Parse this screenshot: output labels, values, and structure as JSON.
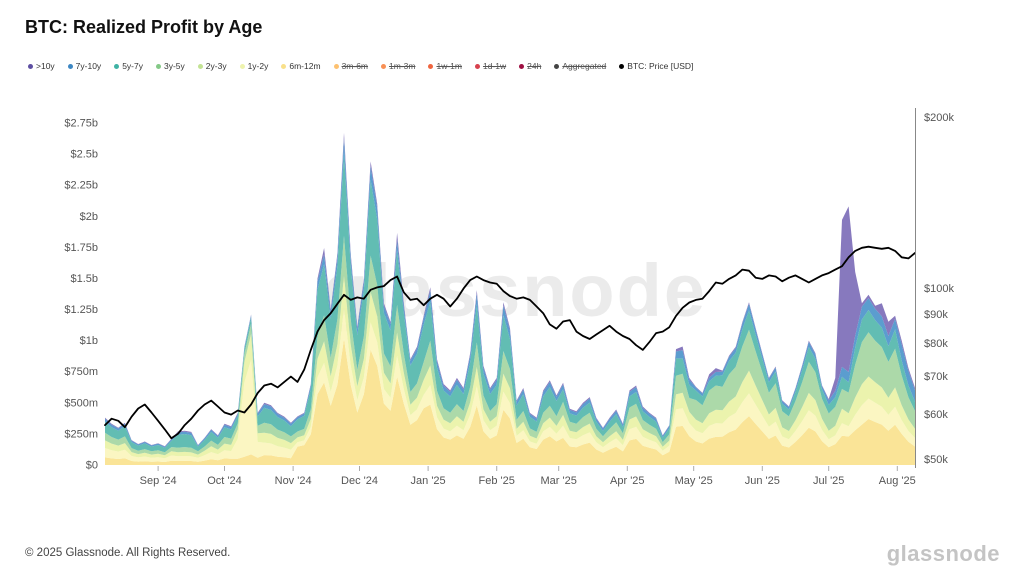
{
  "title": "BTC: Realized Profit by Age",
  "watermark": "glassnode",
  "footer": {
    "copyright": "© 2025 Glassnode. All Rights Reserved.",
    "wordmark": "glassnode"
  },
  "legend": [
    {
      "label": ">10y",
      "color": "#5e4fa2",
      "enabled": true
    },
    {
      "label": "7y-10y",
      "color": "#3d87c3",
      "enabled": true
    },
    {
      "label": "5y-7y",
      "color": "#3fb2a4",
      "enabled": true
    },
    {
      "label": "3y-5y",
      "color": "#84c987",
      "enabled": true
    },
    {
      "label": "2y-3y",
      "color": "#c3e394",
      "enabled": true
    },
    {
      "label": "1y-2y",
      "color": "#eef3ae",
      "enabled": true
    },
    {
      "label": "6m-12m",
      "color": "#f9e08a",
      "enabled": true
    },
    {
      "label": "3m-6m",
      "color": "#fdc170",
      "enabled": false
    },
    {
      "label": "1m-3m",
      "color": "#f89055",
      "enabled": false
    },
    {
      "label": "1w-1m",
      "color": "#ef653f",
      "enabled": false
    },
    {
      "label": "1d-1w",
      "color": "#d7414e",
      "enabled": false
    },
    {
      "label": "24h",
      "color": "#9e0f42",
      "enabled": false
    },
    {
      "label": "Aggregated",
      "color": "#444444",
      "enabled": false
    },
    {
      "label": "BTC: Price [USD]",
      "color": "#000000",
      "enabled": true
    }
  ],
  "chart_data": {
    "type": "area",
    "stacked": true,
    "title": "BTC: Realized Profit by Age",
    "x_start": "2024-08-08",
    "step_days": 3,
    "n": 123,
    "unit_left": "realized profit, $ millions",
    "unit_right": "BTC price, $ thousands (log scale)",
    "month_ticks": [
      {
        "label": "Sep '24",
        "day": 24
      },
      {
        "label": "Oct '24",
        "day": 54
      },
      {
        "label": "Nov '24",
        "day": 85
      },
      {
        "label": "Dec '24",
        "day": 115
      },
      {
        "label": "Jan '25",
        "day": 146
      },
      {
        "label": "Feb '25",
        "day": 177
      },
      {
        "label": "Mar '25",
        "day": 205
      },
      {
        "label": "Apr '25",
        "day": 236
      },
      {
        "label": "May '25",
        "day": 266
      },
      {
        "label": "Jun '25",
        "day": 297
      },
      {
        "label": "Jul '25",
        "day": 327
      },
      {
        "label": "Aug '25",
        "day": 358
      }
    ],
    "left_axis": {
      "ticks": [
        {
          "label": "$0",
          "v": 0
        },
        {
          "label": "$250m",
          "v": 250
        },
        {
          "label": "$500m",
          "v": 500
        },
        {
          "label": "$750m",
          "v": 750
        },
        {
          "label": "$1b",
          "v": 1000
        },
        {
          "label": "$1.25b",
          "v": 1250
        },
        {
          "label": "$1.5b",
          "v": 1500
        },
        {
          "label": "$1.75b",
          "v": 1750
        },
        {
          "label": "$2b",
          "v": 2000
        },
        {
          "label": "$2.25b",
          "v": 2250
        },
        {
          "label": "$2.5b",
          "v": 2500
        },
        {
          "label": "$2.75b",
          "v": 2750
        }
      ],
      "max": 2750
    },
    "right_axis": {
      "scale": "log",
      "ticks": [
        {
          "label": "$50k",
          "v": 50
        },
        {
          "label": "$60k",
          "v": 60
        },
        {
          "label": "$70k",
          "v": 70
        },
        {
          "label": "$80k",
          "v": 80
        },
        {
          "label": "$90k",
          "v": 90
        },
        {
          "label": "$100k",
          "v": 100
        },
        {
          "label": "$200k",
          "v": 200
        }
      ]
    },
    "series": [
      {
        "name": "6m-12m",
        "color": "#fae28e",
        "values": [
          61,
          53,
          48,
          54,
          32,
          27,
          30,
          26,
          28,
          24,
          34,
          32,
          33,
          32,
          26,
          35,
          46,
          38,
          53,
          50,
          50,
          67,
          85,
          59,
          80,
          77,
          67,
          62,
          54,
          148,
          160,
          247,
          570,
          663,
          475,
          646,
          1015,
          646,
          422,
          570,
          927,
          798,
          494,
          437,
          709,
          494,
          323,
          361,
          456,
          486,
          289,
          221,
          204,
          238,
          211,
          306,
          478,
          272,
          211,
          238,
          445,
          374,
          177,
          211,
          143,
          129,
          204,
          231,
          190,
          218,
          149,
          142,
          165,
          180,
          125,
          99,
          125,
          147,
          109,
          198,
          211,
          155,
          139,
          125,
          79,
          106,
          307,
          314,
          231,
          189,
          174,
          212,
          226,
          228,
          264,
          285,
          345,
          393,
          330,
          270,
          210,
          237,
          156,
          141,
          186,
          240,
          300,
          270,
          192,
          143,
          168,
          236,
          229,
          279,
          325,
          370,
          346,
          325,
          276,
          324,
          250,
          187,
          149
        ]
      },
      {
        "name": "1y-2y",
        "color": "#fbf5bd",
        "values": [
          76,
          66,
          60,
          68,
          40,
          34,
          38,
          32,
          35,
          30,
          42,
          38,
          39,
          37,
          32,
          44,
          58,
          48,
          66,
          62,
          160,
          599,
          762,
          126,
          100,
          96,
          84,
          78,
          68,
          35,
          38,
          59,
          135,
          157,
          113,
          153,
          240,
          153,
          100,
          135,
          220,
          189,
          117,
          104,
          168,
          117,
          77,
          86,
          108,
          157,
          94,
          72,
          66,
          77,
          68,
          99,
          155,
          88,
          68,
          77,
          144,
          121,
          57,
          68,
          46,
          42,
          66,
          75,
          62,
          99,
          68,
          65,
          75,
          82,
          57,
          45,
          57,
          67,
          50,
          90,
          96,
          71,
          63,
          57,
          36,
          48,
          140,
          143,
          105,
          88,
          81,
          102,
          109,
          106,
          123,
          133,
          161,
          183,
          154,
          126,
          98,
          111,
          73,
          66,
          87,
          112,
          140,
          126,
          90,
          64,
          70,
          99,
          83,
          124,
          156,
          164,
          154,
          143,
          127,
          144,
          110,
          86,
          68
        ]
      },
      {
        "name": "2y-3y",
        "color": "#e9f2a6",
        "values": [
          61,
          53,
          48,
          54,
          32,
          27,
          30,
          26,
          28,
          24,
          34,
          32,
          33,
          32,
          26,
          35,
          46,
          38,
          53,
          50,
          76,
          162,
          206,
          71,
          80,
          77,
          67,
          62,
          54,
          39,
          42,
          65,
          150,
          175,
          125,
          170,
          267,
          170,
          111,
          150,
          244,
          210,
          130,
          115,
          187,
          130,
          85,
          95,
          120,
          157,
          94,
          72,
          66,
          77,
          68,
          99,
          155,
          88,
          68,
          77,
          144,
          121,
          57,
          68,
          46,
          42,
          66,
          75,
          62,
          86,
          59,
          56,
          65,
          71,
          49,
          39,
          49,
          58,
          43,
          78,
          83,
          61,
          55,
          49,
          31,
          42,
          121,
          124,
          91,
          88,
          81,
          102,
          109,
          106,
          123,
          133,
          161,
          183,
          154,
          126,
          98,
          111,
          73,
          66,
          87,
          112,
          140,
          126,
          90,
          69,
          77,
          118,
          104,
          140,
          169,
          178,
          166,
          156,
          138,
          156,
          120,
          94,
          74
        ]
      },
      {
        "name": "3y-5y",
        "color": "#a5d6a2",
        "values": [
          61,
          53,
          48,
          54,
          32,
          27,
          30,
          26,
          28,
          24,
          34,
          38,
          39,
          37,
          26,
          35,
          46,
          38,
          53,
          50,
          50,
          67,
          85,
          59,
          80,
          77,
          67,
          62,
          54,
          47,
          50,
          78,
          180,
          209,
          150,
          204,
          320,
          204,
          133,
          180,
          293,
          252,
          156,
          138,
          224,
          156,
          102,
          114,
          144,
          200,
          119,
          91,
          84,
          98,
          87,
          126,
          197,
          112,
          87,
          98,
          183,
          154,
          73,
          87,
          59,
          53,
          84,
          95,
          78,
          106,
          72,
          69,
          80,
          87,
          61,
          48,
          61,
          71,
          53,
          96,
          102,
          75,
          67,
          61,
          38,
          51,
          149,
          152,
          112,
          158,
          145,
          183,
          195,
          190,
          220,
          238,
          288,
          328,
          275,
          225,
          175,
          198,
          130,
          118,
          155,
          200,
          250,
          225,
          160,
          138,
          154,
          158,
          166,
          264,
          338,
          356,
          333,
          325,
          288,
          312,
          240,
          179,
          143
        ]
      },
      {
        "name": "5y-7y",
        "color": "#55b7ac",
        "values": [
          91,
          79,
          72,
          82,
          48,
          41,
          46,
          38,
          42,
          36,
          50,
          103,
          105,
          101,
          38,
          53,
          70,
          58,
          79,
          74,
          59,
          38,
          48,
          76,
          120,
          115,
          101,
          94,
          82,
          98,
          105,
          163,
          375,
          410,
          313,
          425,
          668,
          425,
          278,
          375,
          610,
          525,
          325,
          288,
          438,
          325,
          213,
          238,
          300,
          315,
          187,
          143,
          132,
          154,
          136,
          198,
          309,
          176,
          136,
          154,
          288,
          242,
          114,
          136,
          92,
          84,
          132,
          150,
          123,
          99,
          68,
          65,
          75,
          82,
          57,
          45,
          57,
          67,
          50,
          90,
          96,
          71,
          63,
          57,
          36,
          48,
          140,
          124,
          105,
          76,
          70,
          73,
          78,
          91,
          106,
          114,
          138,
          157,
          132,
          108,
          84,
          95,
          62,
          56,
          74,
          96,
          120,
          108,
          77,
          69,
          77,
          99,
          83,
          140,
          182,
          178,
          166,
          156,
          127,
          156,
          120,
          94,
          74
        ]
      },
      {
        "name": "7y-10y",
        "color": "#4d95cb",
        "values": [
          23,
          20,
          18,
          20,
          12,
          10,
          11,
          10,
          11,
          9,
          13,
          19,
          19,
          19,
          10,
          13,
          17,
          14,
          20,
          19,
          17,
          14,
          18,
          21,
          30,
          29,
          25,
          23,
          20,
          18,
          19,
          29,
          68,
          79,
          56,
          77,
          120,
          77,
          50,
          68,
          110,
          95,
          59,
          52,
          84,
          59,
          38,
          43,
          54,
          86,
          51,
          39,
          36,
          42,
          37,
          54,
          84,
          48,
          37,
          42,
          79,
          66,
          31,
          37,
          25,
          23,
          36,
          41,
          34,
          40,
          27,
          26,
          30,
          33,
          23,
          18,
          23,
          27,
          20,
          36,
          38,
          28,
          25,
          23,
          14,
          19,
          56,
          67,
          42,
          25,
          23,
          29,
          31,
          30,
          35,
          38,
          46,
          52,
          44,
          36,
          28,
          32,
          21,
          19,
          25,
          32,
          40,
          36,
          26,
          37,
          49,
          79,
          83,
          93,
          104,
          96,
          90,
          91,
          81,
          84,
          130,
          117,
          93
        ]
      },
      {
        "name": ">10y",
        "color": "#7d6eb8",
        "values": [
          8,
          7,
          6,
          7,
          4,
          3,
          4,
          3,
          3,
          3,
          4,
          8,
          8,
          8,
          3,
          4,
          6,
          5,
          7,
          6,
          8,
          5,
          6,
          8,
          10,
          10,
          8,
          8,
          7,
          6,
          6,
          10,
          22,
          52,
          19,
          26,
          40,
          26,
          17,
          22,
          37,
          32,
          20,
          17,
          56,
          20,
          13,
          14,
          18,
          29,
          17,
          13,
          12,
          14,
          12,
          18,
          28,
          16,
          12,
          14,
          26,
          22,
          10,
          12,
          8,
          8,
          12,
          14,
          11,
          13,
          9,
          9,
          10,
          11,
          8,
          6,
          8,
          9,
          7,
          12,
          13,
          9,
          8,
          8,
          5,
          6,
          19,
          29,
          14,
          6,
          6,
          29,
          31,
          8,
          9,
          10,
          12,
          13,
          11,
          9,
          7,
          8,
          5,
          5,
          6,
          8,
          10,
          9,
          6,
          11,
          105,
          1182,
          1331,
          512,
          26,
          27,
          26,
          104,
          115,
          24,
          30,
          23,
          19
        ]
      }
    ],
    "price": {
      "name": "BTC: Price [USD]",
      "color": "#000000",
      "values": [
        57.5,
        59,
        58.5,
        57,
        59.5,
        61.5,
        62.5,
        60.5,
        58.5,
        56.5,
        54.5,
        55.5,
        57.5,
        59,
        61,
        62.5,
        63.5,
        62,
        60.5,
        60,
        61,
        60.5,
        62.5,
        65.5,
        67.5,
        68,
        67,
        68.5,
        70,
        68.5,
        72,
        78,
        84,
        88,
        90.5,
        94,
        97.5,
        95.5,
        96.5,
        96,
        99.5,
        100.5,
        101,
        103.5,
        105,
        98.5,
        95.5,
        96,
        93.5,
        96,
        97.5,
        96,
        93,
        96,
        100,
        103.5,
        105,
        103.5,
        102.5,
        102,
        99,
        97,
        96,
        96.5,
        95.5,
        93,
        90.5,
        86.5,
        85,
        87.5,
        88,
        84,
        82.5,
        81.5,
        83,
        84.5,
        86,
        84,
        82.5,
        81.5,
        79.5,
        78,
        80.5,
        83.5,
        84,
        85.5,
        89.5,
        92.5,
        94.5,
        95.5,
        96,
        99,
        102.5,
        102,
        104,
        105.5,
        108,
        107.5,
        104.5,
        104,
        105.5,
        105,
        103,
        104.5,
        105.5,
        104,
        102.5,
        104,
        105.5,
        106.5,
        108,
        109.5,
        113.5,
        116.5,
        118,
        118.5,
        118,
        117.5,
        118,
        116.5,
        113.5,
        113,
        115.5
      ]
    }
  }
}
